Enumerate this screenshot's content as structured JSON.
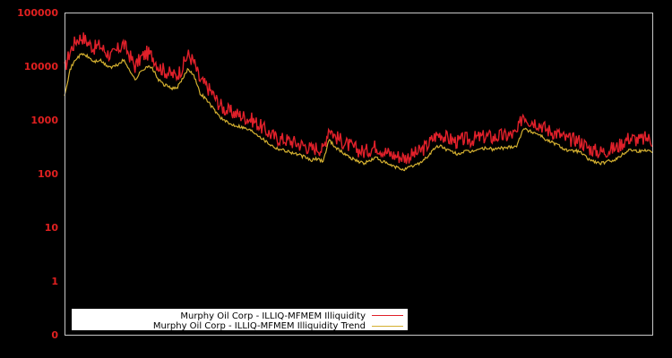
{
  "chart_data": {
    "type": "line",
    "title": "",
    "xlabel": "",
    "ylabel": "",
    "yscale": "log",
    "ylim": [
      0,
      100000
    ],
    "y_ticks": [
      "100000",
      "10000",
      "1000",
      "100",
      "10",
      "1",
      "0"
    ],
    "x_ticks": [],
    "grid": false,
    "legend_position": "lower-left",
    "background": "#000000",
    "frame_color": "#c8c8c8",
    "tick_label_color": "#e02020",
    "series": [
      {
        "name": "Murphy Oil Corp - ILLIQ-MFMEM Illiquidity",
        "color": "#e0202a",
        "x": [
          0,
          0.01,
          0.02,
          0.03,
          0.04,
          0.05,
          0.06,
          0.07,
          0.08,
          0.09,
          0.1,
          0.11,
          0.12,
          0.13,
          0.14,
          0.15,
          0.16,
          0.17,
          0.18,
          0.19,
          0.2,
          0.21,
          0.22,
          0.23,
          0.24,
          0.25,
          0.26,
          0.27,
          0.28,
          0.29,
          0.3,
          0.31,
          0.32,
          0.33,
          0.34,
          0.35,
          0.36,
          0.37,
          0.38,
          0.39,
          0.4,
          0.41,
          0.42,
          0.43,
          0.44,
          0.45,
          0.46,
          0.47,
          0.48,
          0.49,
          0.5,
          0.51,
          0.52,
          0.53,
          0.54,
          0.55,
          0.56,
          0.57,
          0.58,
          0.59,
          0.6,
          0.61,
          0.62,
          0.63,
          0.64,
          0.65,
          0.66,
          0.67,
          0.68,
          0.69,
          0.7,
          0.71,
          0.72,
          0.73,
          0.74,
          0.75,
          0.76,
          0.77,
          0.78,
          0.79,
          0.8,
          0.81,
          0.82,
          0.83,
          0.84,
          0.85,
          0.86,
          0.87,
          0.88,
          0.89,
          0.9,
          0.91,
          0.92,
          0.93,
          0.94,
          0.95,
          0.96,
          0.97,
          0.98,
          0.99,
          1.0
        ],
        "values": [
          8000,
          18000,
          28000,
          32000,
          25000,
          20000,
          22000,
          17000,
          14000,
          18000,
          24000,
          15000,
          9000,
          13000,
          16000,
          14000,
          9000,
          7500,
          6500,
          6000,
          8500,
          15000,
          11000,
          5000,
          4000,
          3000,
          2000,
          1500,
          1300,
          1200,
          1100,
          1000,
          900,
          750,
          600,
          500,
          420,
          400,
          380,
          350,
          320,
          300,
          260,
          280,
          250,
          680,
          450,
          380,
          320,
          280,
          250,
          230,
          260,
          300,
          250,
          220,
          200,
          190,
          180,
          200,
          220,
          260,
          330,
          450,
          500,
          420,
          380,
          350,
          400,
          380,
          420,
          430,
          450,
          420,
          460,
          450,
          480,
          500,
          1200,
          900,
          850,
          750,
          600,
          550,
          500,
          420,
          380,
          400,
          350,
          280,
          250,
          230,
          240,
          260,
          280,
          350,
          420,
          400,
          380,
          420,
          380
        ]
      },
      {
        "name": "Murphy Oil Corp - ILLIQ-MFMEM Illiquidity Trend",
        "color": "#d4b030",
        "x": [
          0,
          0.01,
          0.02,
          0.03,
          0.04,
          0.05,
          0.06,
          0.07,
          0.08,
          0.09,
          0.1,
          0.11,
          0.12,
          0.13,
          0.14,
          0.15,
          0.16,
          0.17,
          0.18,
          0.19,
          0.2,
          0.21,
          0.22,
          0.23,
          0.24,
          0.25,
          0.26,
          0.27,
          0.28,
          0.29,
          0.3,
          0.31,
          0.32,
          0.33,
          0.34,
          0.35,
          0.36,
          0.37,
          0.38,
          0.39,
          0.4,
          0.41,
          0.42,
          0.43,
          0.44,
          0.45,
          0.46,
          0.47,
          0.48,
          0.49,
          0.5,
          0.51,
          0.52,
          0.53,
          0.54,
          0.55,
          0.56,
          0.57,
          0.58,
          0.59,
          0.6,
          0.61,
          0.62,
          0.63,
          0.64,
          0.65,
          0.66,
          0.67,
          0.68,
          0.69,
          0.7,
          0.71,
          0.72,
          0.73,
          0.74,
          0.75,
          0.76,
          0.77,
          0.78,
          0.79,
          0.8,
          0.81,
          0.82,
          0.83,
          0.84,
          0.85,
          0.86,
          0.87,
          0.88,
          0.89,
          0.9,
          0.91,
          0.92,
          0.93,
          0.94,
          0.95,
          0.96,
          0.97,
          0.98,
          0.99,
          1.0
        ],
        "values": [
          3000,
          9000,
          14000,
          17000,
          15000,
          12000,
          13000,
          10500,
          9500,
          10500,
          13000,
          9000,
          5500,
          8000,
          10000,
          9000,
          5500,
          4500,
          4000,
          3800,
          5500,
          9000,
          7000,
          3200,
          2500,
          1800,
          1300,
          1000,
          850,
          800,
          750,
          680,
          620,
          520,
          420,
          350,
          300,
          280,
          260,
          240,
          220,
          200,
          175,
          190,
          170,
          430,
          320,
          260,
          220,
          190,
          170,
          155,
          175,
          200,
          170,
          150,
          135,
          125,
          120,
          135,
          150,
          175,
          220,
          300,
          330,
          280,
          250,
          230,
          260,
          250,
          280,
          290,
          300,
          280,
          300,
          300,
          320,
          330,
          700,
          620,
          580,
          520,
          420,
          380,
          340,
          290,
          260,
          270,
          240,
          190,
          170,
          155,
          160,
          175,
          190,
          230,
          280,
          270,
          260,
          280,
          260
        ]
      }
    ]
  },
  "legend": {
    "items": [
      {
        "label": "Murphy Oil Corp - ILLIQ-MFMEM Illiquidity",
        "color": "#e0202a"
      },
      {
        "label": "Murphy Oil Corp - ILLIQ-MFMEM Illiquidity Trend",
        "color": "#d4b030"
      }
    ]
  }
}
